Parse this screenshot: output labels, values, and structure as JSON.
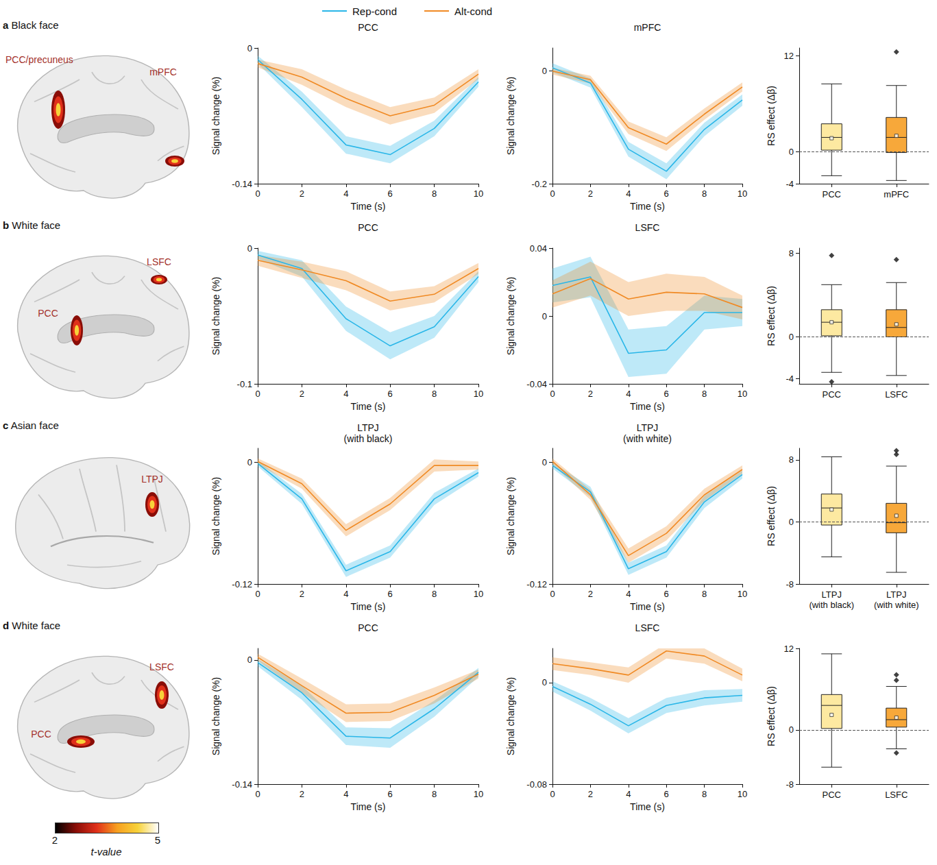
{
  "chart_data": [
    {
      "type": "line",
      "title": "PCC",
      "xlabel": "Time (s)",
      "ylabel": "Signal change (%)",
      "x": [
        0,
        2,
        4,
        6,
        8,
        10
      ],
      "xlim": [
        0,
        10
      ],
      "xticks": [
        0,
        2,
        4,
        6,
        8,
        10
      ],
      "ylim": [
        -0.14,
        0
      ],
      "yticks": [
        -0.14,
        0
      ],
      "series": [
        {
          "name": "Rep-cond",
          "color": "#29b6e8",
          "values": [
            -0.012,
            -0.053,
            -0.1,
            -0.11,
            -0.083,
            -0.035
          ],
          "error": [
            0.004,
            0.008,
            0.009,
            0.009,
            0.008,
            0.005
          ]
        },
        {
          "name": "Alt-cond",
          "color": "#f08a24",
          "values": [
            -0.016,
            -0.03,
            -0.052,
            -0.07,
            -0.059,
            -0.027
          ],
          "error": [
            0.004,
            0.008,
            0.009,
            0.009,
            0.008,
            0.005
          ]
        }
      ]
    },
    {
      "type": "line",
      "title": "mPFC",
      "xlabel": "Time (s)",
      "ylabel": "Signal change (%)",
      "x": [
        0,
        2,
        4,
        6,
        8,
        10
      ],
      "xlim": [
        0,
        10
      ],
      "xticks": [
        0,
        2,
        4,
        6,
        8,
        10
      ],
      "ylim": [
        -0.2,
        0.04
      ],
      "yticks": [
        -0.2,
        0
      ],
      "series": [
        {
          "name": "Rep-cond",
          "color": "#29b6e8",
          "values": [
            0.005,
            -0.022,
            -0.139,
            -0.178,
            -0.104,
            -0.052
          ],
          "error": [
            0.008,
            0.008,
            0.013,
            0.014,
            0.012,
            0.01
          ]
        },
        {
          "name": "Alt-cond",
          "color": "#f08a24",
          "values": [
            -0.001,
            -0.016,
            -0.101,
            -0.13,
            -0.077,
            -0.029
          ],
          "error": [
            0.006,
            0.007,
            0.011,
            0.012,
            0.01,
            0.008
          ]
        }
      ]
    },
    {
      "type": "boxplot",
      "ylabel": "RS effect (Δβ)",
      "categories": [
        "PCC",
        "mPFC"
      ],
      "stats": [
        [
          -3,
          0.2,
          1.8,
          3.5,
          8.5
        ],
        [
          -3.6,
          -0.1,
          1.8,
          4.3,
          8.3
        ]
      ],
      "means": [
        1.7,
        2.0
      ],
      "outliers": [
        [],
        [
          12.5
        ]
      ],
      "colors": [
        "#fde9a1",
        "#f7a83a"
      ],
      "ylim": [
        -4,
        13
      ],
      "yticks": [
        -4,
        0,
        12
      ],
      "reference_y": 0
    },
    {
      "type": "line",
      "title": "PCC",
      "xlabel": "Time (s)",
      "ylabel": "Signal change (%)",
      "x": [
        0,
        2,
        4,
        6,
        8,
        10
      ],
      "xlim": [
        0,
        10
      ],
      "xticks": [
        0,
        2,
        4,
        6,
        8,
        10
      ],
      "ylim": [
        -0.1,
        0
      ],
      "yticks": [
        -0.1,
        0
      ],
      "series": [
        {
          "name": "Rep-cond",
          "color": "#29b6e8",
          "values": [
            -0.005,
            -0.015,
            -0.052,
            -0.072,
            -0.058,
            -0.021
          ],
          "error": [
            0.003,
            0.006,
            0.009,
            0.01,
            0.008,
            0.004
          ]
        },
        {
          "name": "Alt-cond",
          "color": "#f08a24",
          "values": [
            -0.009,
            -0.016,
            -0.024,
            -0.039,
            -0.034,
            -0.015
          ],
          "error": [
            0.004,
            0.006,
            0.007,
            0.007,
            0.006,
            0.004
          ]
        }
      ]
    },
    {
      "type": "line",
      "title": "LSFC",
      "xlabel": "Time (s)",
      "ylabel": "Signal change (%)",
      "x": [
        0,
        2,
        4,
        6,
        8,
        10
      ],
      "xlim": [
        0,
        10
      ],
      "xticks": [
        0,
        2,
        4,
        6,
        8,
        10
      ],
      "ylim": [
        -0.04,
        0.04
      ],
      "yticks": [
        -0.04,
        0,
        0.04
      ],
      "series": [
        {
          "name": "Rep-cond",
          "color": "#29b6e8",
          "values": [
            0.018,
            0.023,
            -0.022,
            -0.02,
            0.002,
            0.002
          ],
          "error": [
            0.01,
            0.012,
            0.014,
            0.014,
            0.01,
            0.008
          ]
        },
        {
          "name": "Alt-cond",
          "color": "#f08a24",
          "values": [
            0.013,
            0.022,
            0.01,
            0.014,
            0.013,
            0.005
          ],
          "error": [
            0.008,
            0.01,
            0.01,
            0.011,
            0.01,
            0.007
          ]
        }
      ]
    },
    {
      "type": "boxplot",
      "ylabel": "RS effect (Δβ)",
      "categories": [
        "PCC",
        "LSFC"
      ],
      "stats": [
        [
          -3.4,
          0.1,
          1.4,
          2.6,
          5
        ],
        [
          -3.7,
          0,
          0.9,
          2.6,
          5.2
        ]
      ],
      "means": [
        1.4,
        1.2
      ],
      "outliers": [
        [
          7.8,
          -4.3
        ],
        [
          7.4
        ]
      ],
      "colors": [
        "#fde9a1",
        "#f7a83a"
      ],
      "ylim": [
        -4.5,
        8.5
      ],
      "yticks": [
        -4,
        0,
        8
      ],
      "reference_y": 0
    },
    {
      "type": "line",
      "title": "LTPJ (with black)",
      "xlabel": "Time (s)",
      "ylabel": "Signal change (%)",
      "x": [
        0,
        2,
        4,
        6,
        8,
        10
      ],
      "xlim": [
        0,
        10
      ],
      "xticks": [
        0,
        2,
        4,
        6,
        8,
        10
      ],
      "ylim": [
        -0.12,
        0.014
      ],
      "yticks": [
        -0.12,
        0
      ],
      "series": [
        {
          "name": "Rep-cond",
          "color": "#29b6e8",
          "values": [
            -0.001,
            -0.036,
            -0.107,
            -0.088,
            -0.036,
            -0.01
          ],
          "error": [
            0.003,
            0.005,
            0.006,
            0.006,
            0.006,
            0.004
          ]
        },
        {
          "name": "Alt-cond",
          "color": "#f08a24",
          "values": [
            0.001,
            -0.021,
            -0.067,
            -0.041,
            -0.003,
            -0.003
          ],
          "error": [
            0.003,
            0.005,
            0.006,
            0.006,
            0.006,
            0.004
          ]
        }
      ]
    },
    {
      "type": "line",
      "title": "LTPJ (with white)",
      "xlabel": "Time (s)",
      "ylabel": "Signal change (%)",
      "x": [
        0,
        2,
        4,
        6,
        8,
        10
      ],
      "xlim": [
        0,
        10
      ],
      "xticks": [
        0,
        2,
        4,
        6,
        8,
        10
      ],
      "ylim": [
        -0.12,
        0.014
      ],
      "yticks": [
        -0.12,
        0
      ],
      "series": [
        {
          "name": "Rep-cond",
          "color": "#29b6e8",
          "values": [
            -0.003,
            -0.029,
            -0.105,
            -0.088,
            -0.039,
            -0.012
          ],
          "error": [
            0.003,
            0.005,
            0.006,
            0.006,
            0.006,
            0.004
          ]
        },
        {
          "name": "Alt-cond",
          "color": "#f08a24",
          "values": [
            0.001,
            -0.032,
            -0.092,
            -0.07,
            -0.032,
            -0.007
          ],
          "error": [
            0.003,
            0.005,
            0.007,
            0.007,
            0.006,
            0.004
          ]
        }
      ]
    },
    {
      "type": "boxplot",
      "ylabel": "RS effect (Δβ)",
      "categories": [
        "LTPJ (with black)",
        "LTPJ (with white)"
      ],
      "stats": [
        [
          -4.5,
          -0.4,
          1.8,
          3.6,
          8.4
        ],
        [
          -6.5,
          -1.4,
          -0.1,
          2.4,
          7.2
        ]
      ],
      "means": [
        1.6,
        0.8
      ],
      "outliers": [
        [],
        [
          9.2,
          8.7
        ]
      ],
      "colors": [
        "#fde9a1",
        "#f7a83a"
      ],
      "ylim": [
        -8,
        9.5
      ],
      "yticks": [
        -8,
        0,
        8
      ],
      "reference_y": 0
    },
    {
      "type": "line",
      "title": "PCC",
      "xlabel": "Time (s)",
      "ylabel": "Signal change (%)",
      "x": [
        0,
        2,
        4,
        6,
        8,
        10
      ],
      "xlim": [
        0,
        10
      ],
      "xticks": [
        0,
        2,
        4,
        6,
        8,
        10
      ],
      "ylim": [
        -0.14,
        0.013
      ],
      "yticks": [
        -0.14,
        0
      ],
      "series": [
        {
          "name": "Rep-cond",
          "color": "#29b6e8",
          "values": [
            -0.003,
            -0.037,
            -0.086,
            -0.088,
            -0.055,
            -0.014
          ],
          "error": [
            0.004,
            0.008,
            0.01,
            0.011,
            0.009,
            0.005
          ]
        },
        {
          "name": "Alt-cond",
          "color": "#f08a24",
          "values": [
            0.003,
            -0.029,
            -0.06,
            -0.059,
            -0.04,
            -0.016
          ],
          "error": [
            0.004,
            0.008,
            0.01,
            0.01,
            0.009,
            0.005
          ]
        }
      ]
    },
    {
      "type": "line",
      "title": "LSFC",
      "xlabel": "Time (s)",
      "ylabel": "Signal change (%)",
      "x": [
        0,
        2,
        4,
        6,
        8,
        10
      ],
      "xlim": [
        0,
        10
      ],
      "xticks": [
        0,
        2,
        4,
        6,
        8,
        10
      ],
      "ylim": [
        -0.08,
        0.027
      ],
      "yticks": [
        -0.08,
        0
      ],
      "series": [
        {
          "name": "Rep-cond",
          "color": "#29b6e8",
          "values": [
            -0.003,
            -0.017,
            -0.034,
            -0.018,
            -0.012,
            -0.01
          ],
          "error": [
            0.004,
            0.005,
            0.006,
            0.006,
            0.006,
            0.005
          ]
        },
        {
          "name": "Alt-cond",
          "color": "#f08a24",
          "values": [
            0.015,
            0.011,
            0.006,
            0.025,
            0.021,
            0.006
          ],
          "error": [
            0.005,
            0.005,
            0.006,
            0.006,
            0.006,
            0.005
          ]
        }
      ]
    },
    {
      "type": "boxplot",
      "ylabel": "RS effect (Δβ)",
      "categories": [
        "PCC",
        "LSFC"
      ],
      "stats": [
        [
          -5.5,
          0.2,
          3.6,
          5.2,
          11.2
        ],
        [
          -2.8,
          0.4,
          1.5,
          3.2,
          6.4
        ]
      ],
      "means": [
        2.2,
        1.8
      ],
      "outliers": [
        [],
        [
          8.1,
          7.3,
          -3.4
        ]
      ],
      "colors": [
        "#fde9a1",
        "#f7a83a"
      ],
      "ylim": [
        -8,
        12
      ],
      "yticks": [
        -8,
        0,
        12
      ],
      "reference_y": 0
    }
  ],
  "panels": [
    {
      "letter": "a",
      "title": "Black face",
      "regions": [
        "PCC/precuneus",
        "mPFC"
      ]
    },
    {
      "letter": "b",
      "title": "White face",
      "regions": [
        "PCC",
        "LSFC"
      ]
    },
    {
      "letter": "c",
      "title": "Asian face",
      "regions": [
        "LTPJ"
      ]
    },
    {
      "letter": "d",
      "title": "White face",
      "regions": [
        "PCC",
        "LSFC"
      ]
    }
  ],
  "colorbar": {
    "label": "t-value",
    "range": [
      2,
      5
    ],
    "ticks": [
      2,
      5
    ]
  }
}
